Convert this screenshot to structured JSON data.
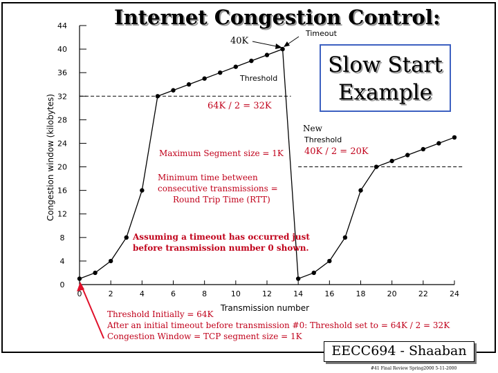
{
  "title": "Internet Congestion Control:",
  "callout": {
    "line1": "Slow Start",
    "line2": "Example"
  },
  "annotations": {
    "k40": "40K",
    "timeout": "Timeout",
    "threshold": "Threshold",
    "threshold_value": "64K / 2  = 32K",
    "new": "New",
    "new_threshold": "Threshold",
    "new_threshold_value": "40K / 2 = 20K",
    "mss": "Maximum Segment size = 1K",
    "rtt_line1": "Minimum time between",
    "rtt_line2": "consecutive transmissions =",
    "rtt_line3": "Round Trip Time (RTT)",
    "assume_line1": "Assuming a timeout has occurred just",
    "assume_line2": "before transmission number 0 shown."
  },
  "notes": {
    "line1": "Threshold Initially  = 64K",
    "line2": "After an initial timeout before transmission #0:   Threshold  set to  = 64K / 2 = 32K",
    "line3": "Congestion Window = TCP segment size = 1K"
  },
  "badge": "EECC694 - Shaaban",
  "footer": "#41  Final Review  Spring2000  5-11-2000",
  "colors": {
    "annotation_red": "#c0001a",
    "callout_border": "#3b5fc0",
    "arrow_red": "#e0102a"
  },
  "chart_data": {
    "type": "line",
    "title": "",
    "xlabel": "Transmission number",
    "ylabel": "Congestion window (kilobytes)",
    "xlim": [
      0,
      24
    ],
    "ylim": [
      0,
      44
    ],
    "xticks": [
      0,
      2,
      4,
      6,
      8,
      10,
      12,
      14,
      16,
      18,
      20,
      22,
      24
    ],
    "yticks": [
      0,
      4,
      8,
      12,
      16,
      20,
      24,
      28,
      32,
      36,
      40,
      44
    ],
    "x": [
      0,
      1,
      2,
      3,
      4,
      5,
      6,
      7,
      8,
      9,
      10,
      11,
      12,
      13,
      14,
      15,
      16,
      17,
      18,
      19,
      20,
      21,
      22,
      23,
      24
    ],
    "y": [
      1,
      2,
      4,
      8,
      16,
      32,
      33,
      34,
      35,
      36,
      37,
      38,
      39,
      40,
      1,
      2,
      4,
      8,
      16,
      20,
      21,
      22,
      23,
      24,
      25
    ],
    "thresholds": [
      {
        "value": 32,
        "x_start": 0,
        "x_end": 13
      },
      {
        "value": 20,
        "x_start": 14,
        "x_end": 24
      }
    ]
  }
}
